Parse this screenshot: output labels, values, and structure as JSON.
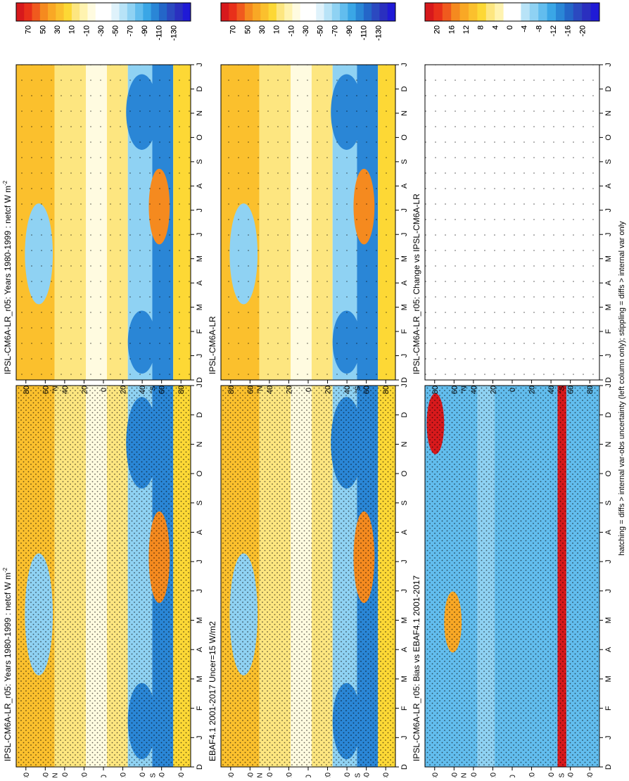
{
  "figure": {
    "footer": "hatching = diffs > internal var-obs uncertainty (left column only); stippling = diffs > internal var only"
  },
  "month_ticks": [
    "D",
    "J",
    "F",
    "M",
    "A",
    "M",
    "J",
    "J",
    "A",
    "S",
    "O",
    "N",
    "D",
    "J"
  ],
  "lat_ticks": [
    "80",
    "60",
    "40",
    "20",
    "0",
    "20",
    "40",
    "60",
    "80"
  ],
  "lat_unit_labels": {
    "north": "°N",
    "south": "°S"
  },
  "panels": [
    {
      "id": "model_left",
      "title": "IPSL-CM6A-LR_r05: Years 1980-1999 : netcf W m",
      "title_sup": "-2",
      "scale": "abs"
    },
    {
      "id": "model_right",
      "title": "IPSL-CM6A-LR_r05: Years 1980-1999 : netcf W m",
      "title_sup": "-2",
      "scale": "abs"
    },
    {
      "id": "obs",
      "title": "EBAF4.1 2001-2017 Uncer=15 W/m2",
      "title_sup": "",
      "scale": "abs"
    },
    {
      "id": "ref_model",
      "title": "IPSL-CM6A-LR",
      "title_sup": "",
      "scale": "abs"
    },
    {
      "id": "bias",
      "title": "IPSL-CM6A-LR_r05: Bias vs EBAF4.1 2001-2017",
      "title_sup": "",
      "scale": "diff"
    },
    {
      "id": "change",
      "title": "IPSL-CM6A-LR_r05: Change vs IPSL-CM6A-LR",
      "title_sup": "",
      "scale": "diff"
    }
  ],
  "colorbars": {
    "abs": {
      "labels": [
        "70",
        "50",
        "30",
        "10",
        "-10",
        "-30",
        "-50",
        "-70",
        "-90",
        "-110",
        "-130"
      ],
      "colors": [
        "#d7191c",
        "#e8301a",
        "#f05a1e",
        "#f58a1f",
        "#f9a825",
        "#fbc02d",
        "#fdd835",
        "#fde680",
        "#fff3b0",
        "#fffbe0",
        "#ffffff",
        "#ffffff",
        "#dff2fb",
        "#b8e3f7",
        "#8fd2f3",
        "#62bdee",
        "#3aa6e6",
        "#2a86d6",
        "#2466c8",
        "#2b49c0",
        "#2a2fbf",
        "#1f1ad6"
      ]
    },
    "diff": {
      "labels": [
        "20",
        "16",
        "12",
        "8",
        "4",
        "0",
        "-4",
        "-8",
        "-12",
        "-16",
        "-20"
      ],
      "colors": [
        "#d7191c",
        "#e8301a",
        "#f05a1e",
        "#f58a1f",
        "#f9a825",
        "#fbc02d",
        "#fdd835",
        "#fde680",
        "#fff3b0",
        "#ffffff",
        "#ffffff",
        "#b8e3f7",
        "#8fd2f3",
        "#62bdee",
        "#3aa6e6",
        "#2a86d6",
        "#2466c8",
        "#2b49c0",
        "#2a2fbf",
        "#1f1ad6"
      ]
    }
  }
}
